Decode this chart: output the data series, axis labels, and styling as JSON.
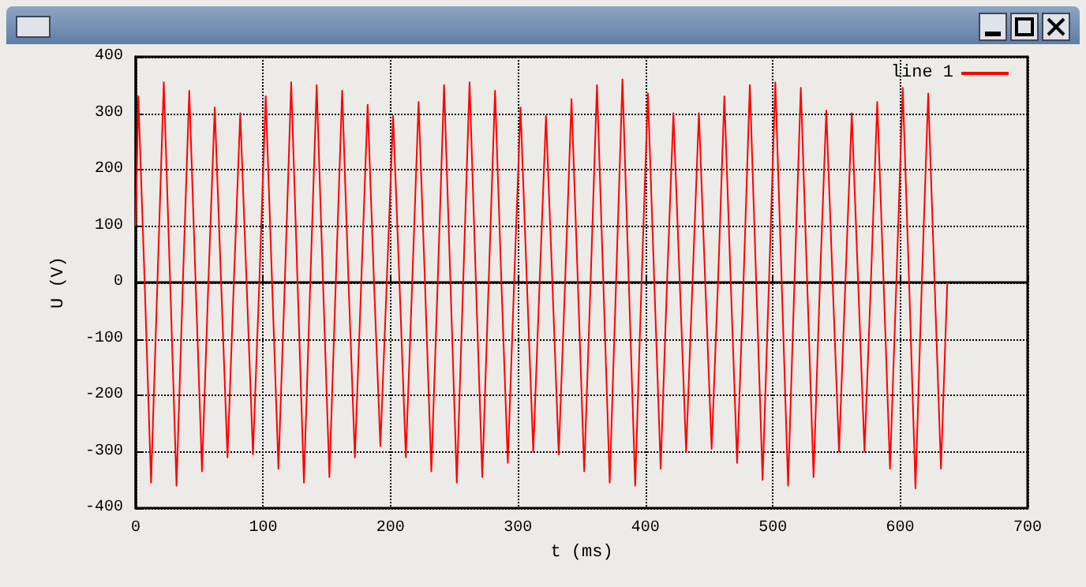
{
  "chart_data": {
    "type": "line",
    "xlabel": "t (ms)",
    "ylabel": "U (V)",
    "xlim": [
      0,
      700
    ],
    "xticks": [
      0,
      100,
      200,
      300,
      400,
      500,
      600,
      700
    ],
    "ylim": [
      -400,
      400
    ],
    "yticks": [
      -400,
      -300,
      -200,
      -100,
      0,
      100,
      200,
      300,
      400
    ],
    "grid": true,
    "legend": "top right",
    "marker": "none",
    "line_style": "solid",
    "x": [
      0,
      2,
      7,
      12,
      17,
      22,
      27,
      32,
      37,
      42,
      47,
      52,
      57,
      62,
      67,
      72,
      77,
      82,
      87,
      92,
      97,
      102,
      107,
      112,
      117,
      122,
      127,
      132,
      137,
      142,
      147,
      152,
      157,
      162,
      167,
      172,
      177,
      182,
      187,
      192,
      197,
      202,
      207,
      212,
      217,
      222,
      227,
      232,
      237,
      242,
      247,
      252,
      257,
      262,
      267,
      272,
      277,
      282,
      287,
      292,
      297,
      302,
      307,
      312,
      317,
      322,
      327,
      332,
      337,
      342,
      347,
      352,
      357,
      362,
      367,
      372,
      377,
      382,
      387,
      392,
      397,
      402,
      407,
      412,
      417,
      422,
      427,
      432,
      437,
      442,
      447,
      452,
      457,
      462,
      467,
      472,
      477,
      482,
      487,
      492,
      497,
      502,
      507,
      512,
      517,
      522,
      527,
      532,
      537,
      542,
      547,
      552,
      557,
      562,
      567,
      572,
      577,
      582,
      587,
      592,
      597,
      602,
      607,
      612,
      617,
      622,
      627,
      632,
      637
    ],
    "series": [
      {
        "name": "line 1",
        "color": "#ff0000",
        "values": [
          100,
          330,
          0,
          -355,
          0,
          355,
          0,
          -360,
          0,
          340,
          0,
          -335,
          0,
          310,
          0,
          -310,
          0,
          300,
          0,
          -305,
          0,
          330,
          0,
          -330,
          0,
          355,
          0,
          -355,
          0,
          350,
          0,
          -345,
          0,
          340,
          0,
          -310,
          0,
          315,
          0,
          -290,
          0,
          295,
          0,
          -310,
          0,
          320,
          0,
          -335,
          0,
          350,
          0,
          -355,
          0,
          355,
          0,
          -345,
          0,
          340,
          0,
          -320,
          0,
          310,
          0,
          -300,
          0,
          295,
          0,
          -305,
          0,
          325,
          0,
          -335,
          0,
          350,
          0,
          -355,
          0,
          360,
          0,
          -360,
          0,
          335,
          0,
          -330,
          0,
          300,
          0,
          -300,
          0,
          300,
          0,
          -295,
          0,
          330,
          0,
          -320,
          0,
          350,
          0,
          -350,
          0,
          355,
          0,
          -360,
          0,
          345,
          0,
          -345,
          0,
          305,
          0,
          -300,
          0,
          300,
          0,
          -300,
          0,
          320,
          0,
          -330,
          0,
          345,
          0,
          -365,
          0,
          335,
          0,
          -330,
          0
        ]
      }
    ]
  }
}
